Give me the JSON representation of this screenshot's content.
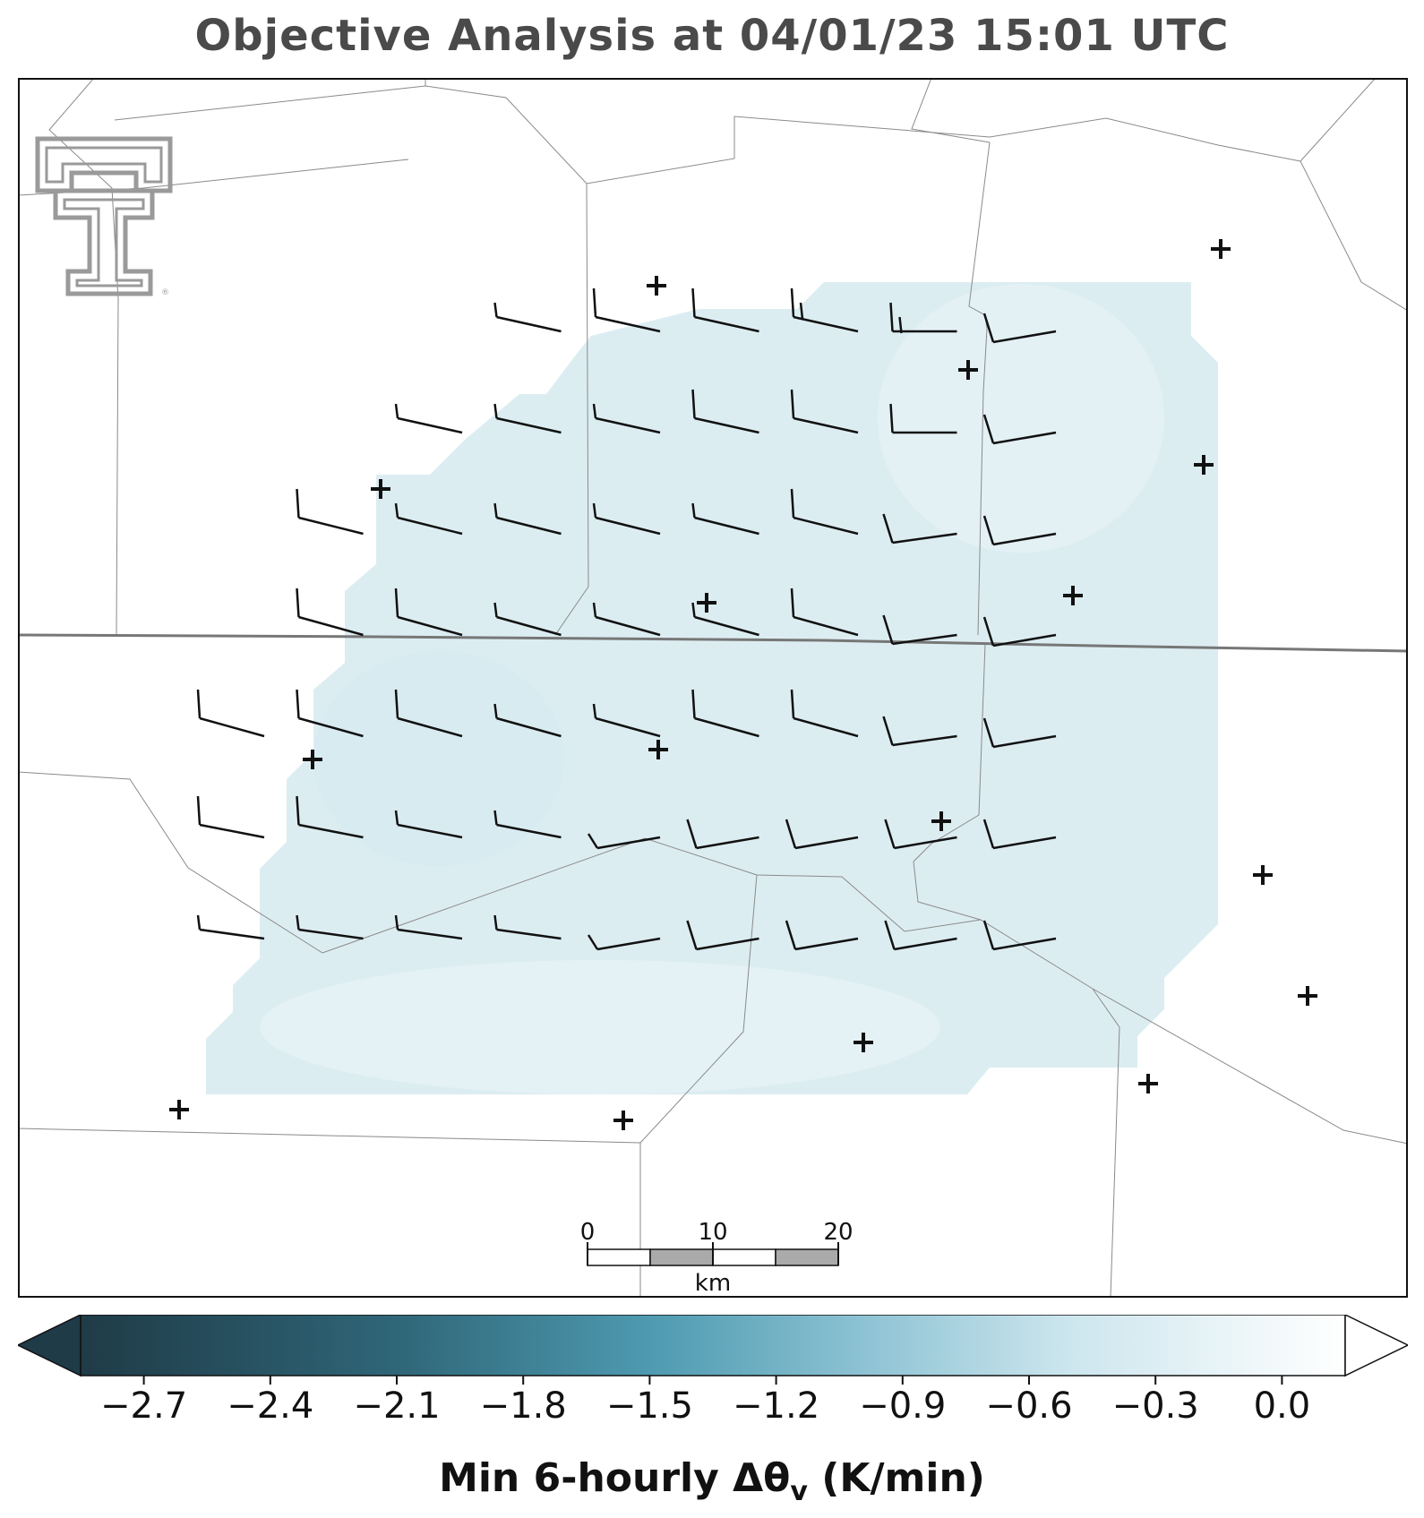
{
  "title": "Objective Analysis at 04/01/23 15:01 UTC",
  "logo": {
    "name": "texas-tech-double-t-logo",
    "color": "#9a9a9a"
  },
  "scale_bar": {
    "tick_labels": [
      "0",
      "10",
      "20"
    ],
    "unit": "km",
    "segment_colors": [
      "#ffffff",
      "#aaaaaa",
      "#ffffff",
      "#aaaaaa"
    ]
  },
  "colorbar": {
    "label_main": "Min 6-hourly Δθ",
    "label_sub": "v",
    "label_units": " (K/min)",
    "vmin": -2.85,
    "vmax": 0.15,
    "extend": "both",
    "tick_values": [
      -2.7,
      -2.4,
      -2.1,
      -1.8,
      -1.5,
      -1.2,
      -0.9,
      -0.6,
      -0.3,
      0.0
    ],
    "tick_labels": [
      "−2.7",
      "−2.4",
      "−2.1",
      "−1.8",
      "−1.5",
      "−1.2",
      "−0.9",
      "−0.6",
      "−0.3",
      "0.0"
    ],
    "low_color": "#1f3b47",
    "high_color": "#ffffff",
    "color_stops": [
      {
        "v": -2.85,
        "c": "#1f3b47"
      },
      {
        "v": -2.1,
        "c": "#2f6678"
      },
      {
        "v": -1.5,
        "c": "#4e9ab0"
      },
      {
        "v": -1.0,
        "c": "#8cc2d3"
      },
      {
        "v": -0.5,
        "c": "#cde6ee"
      },
      {
        "v": 0.15,
        "c": "#ffffff"
      }
    ]
  },
  "analysis_field": {
    "variable": "Min 6-hourly Δθv",
    "fill_color": "#dcedf2",
    "approx_value": -0.45
  },
  "wind_barbs": {
    "color": "#111111",
    "rows": [
      {
        "row": 0,
        "cols": [
          [
            3,
            "short"
          ],
          [
            4,
            "full"
          ],
          [
            5,
            "full"
          ],
          [
            6,
            "full2"
          ],
          [
            7,
            "full2"
          ],
          [
            8,
            "full"
          ]
        ]
      },
      {
        "row": 1,
        "cols": [
          [
            2,
            "short"
          ],
          [
            3,
            "short"
          ],
          [
            4,
            "short"
          ],
          [
            5,
            "full"
          ],
          [
            6,
            "full"
          ],
          [
            7,
            "full"
          ],
          [
            8,
            "full"
          ]
        ]
      },
      {
        "row": 2,
        "cols": [
          [
            1,
            "full"
          ],
          [
            2,
            "short"
          ],
          [
            3,
            "short"
          ],
          [
            4,
            "short"
          ],
          [
            5,
            "short"
          ],
          [
            6,
            "full"
          ],
          [
            7,
            "full"
          ],
          [
            8,
            "full"
          ]
        ]
      },
      {
        "row": 3,
        "cols": [
          [
            1,
            "full"
          ],
          [
            2,
            "full"
          ],
          [
            3,
            "short"
          ],
          [
            4,
            "short"
          ],
          [
            5,
            "short"
          ],
          [
            6,
            "full"
          ],
          [
            7,
            "full"
          ],
          [
            8,
            "full"
          ]
        ]
      },
      {
        "row": 4,
        "cols": [
          [
            0,
            "full"
          ],
          [
            1,
            "full"
          ],
          [
            2,
            "full"
          ],
          [
            3,
            "short"
          ],
          [
            4,
            "short"
          ],
          [
            5,
            "full"
          ],
          [
            6,
            "full"
          ],
          [
            7,
            "full"
          ],
          [
            8,
            "full"
          ]
        ]
      },
      {
        "row": 5,
        "cols": [
          [
            0,
            "full"
          ],
          [
            1,
            "full"
          ],
          [
            2,
            "short"
          ],
          [
            3,
            "short"
          ],
          [
            4,
            "short"
          ],
          [
            5,
            "full"
          ],
          [
            6,
            "full"
          ],
          [
            7,
            "full"
          ],
          [
            8,
            "full"
          ]
        ]
      },
      {
        "row": 6,
        "cols": [
          [
            0,
            "short"
          ],
          [
            1,
            "short"
          ],
          [
            2,
            "short"
          ],
          [
            3,
            "short"
          ],
          [
            4,
            "short"
          ],
          [
            5,
            "full"
          ],
          [
            6,
            "full"
          ],
          [
            7,
            "full"
          ],
          [
            8,
            "full"
          ]
        ]
      }
    ]
  },
  "stations": {
    "marker": "+",
    "color": "#111111",
    "count": 16
  }
}
